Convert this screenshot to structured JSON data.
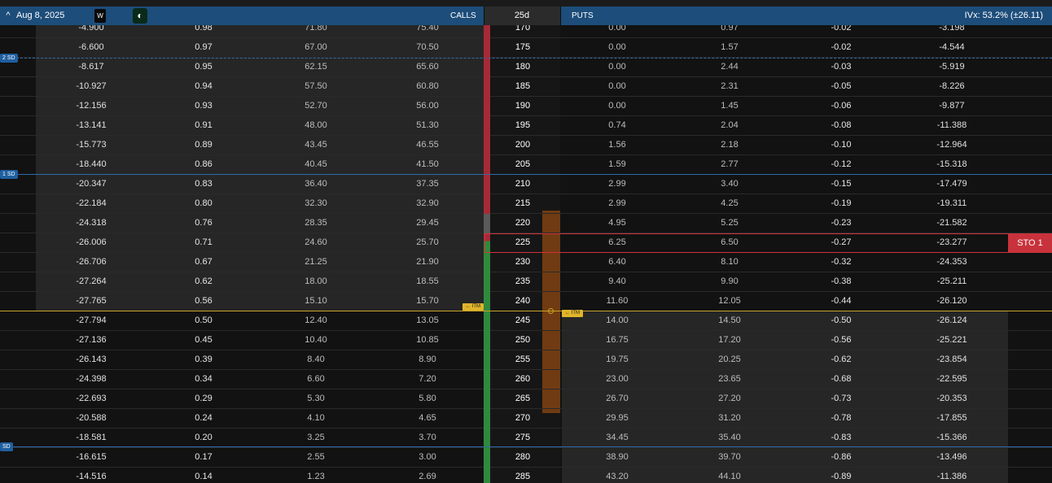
{
  "header": {
    "chevron": "^",
    "expiration": "Aug 8, 2025",
    "weekly_badge": "W",
    "theme_icon": "◐",
    "calls_label": "CALLS",
    "dte_label": "25d",
    "puts_label": "PUTS",
    "ivx": "IVx: 53.2% (±26.11)"
  },
  "sd_labels": {
    "two_sd": "2 SD",
    "one_sd": "1 SD",
    "bottom_sd": "SD"
  },
  "itm_labels": {
    "calls": "← ITM",
    "puts": "← ITM"
  },
  "selected_order": {
    "label": "STO 1"
  },
  "colors": {
    "header_bg": "#1d4d7a",
    "atm_line": "#c9a227",
    "sd_line": "#2f6aa8",
    "call_itm_bar": "#2f8a3e",
    "call_otm_bar": "#a62a36",
    "sto": "#c8323c"
  },
  "rows": [
    {
      "strike": "170",
      "c_theta": "-4.900",
      "c_delta": "0.98",
      "c_bid": "71.80",
      "c_ask": "75.40",
      "p_bid": "0.00",
      "p_ask": "0.97",
      "p_delta": "-0.02",
      "p_theta": "-3.198"
    },
    {
      "strike": "175",
      "c_theta": "-6.600",
      "c_delta": "0.97",
      "c_bid": "67.00",
      "c_ask": "70.50",
      "p_bid": "0.00",
      "p_ask": "1.57",
      "p_delta": "-0.02",
      "p_theta": "-4.544"
    },
    {
      "strike": "180",
      "c_theta": "-8.617",
      "c_delta": "0.95",
      "c_bid": "62.15",
      "c_ask": "65.60",
      "p_bid": "0.00",
      "p_ask": "2.44",
      "p_delta": "-0.03",
      "p_theta": "-5.919"
    },
    {
      "strike": "185",
      "c_theta": "-10.927",
      "c_delta": "0.94",
      "c_bid": "57.50",
      "c_ask": "60.80",
      "p_bid": "0.00",
      "p_ask": "2.31",
      "p_delta": "-0.05",
      "p_theta": "-8.226"
    },
    {
      "strike": "190",
      "c_theta": "-12.156",
      "c_delta": "0.93",
      "c_bid": "52.70",
      "c_ask": "56.00",
      "p_bid": "0.00",
      "p_ask": "1.45",
      "p_delta": "-0.06",
      "p_theta": "-9.877"
    },
    {
      "strike": "195",
      "c_theta": "-13.141",
      "c_delta": "0.91",
      "c_bid": "48.00",
      "c_ask": "51.30",
      "p_bid": "0.74",
      "p_ask": "2.04",
      "p_delta": "-0.08",
      "p_theta": "-11.388"
    },
    {
      "strike": "200",
      "c_theta": "-15.773",
      "c_delta": "0.89",
      "c_bid": "43.45",
      "c_ask": "46.55",
      "p_bid": "1.56",
      "p_ask": "2.18",
      "p_delta": "-0.10",
      "p_theta": "-12.964"
    },
    {
      "strike": "205",
      "c_theta": "-18.440",
      "c_delta": "0.86",
      "c_bid": "40.45",
      "c_ask": "41.50",
      "p_bid": "1.59",
      "p_ask": "2.77",
      "p_delta": "-0.12",
      "p_theta": "-15.318"
    },
    {
      "strike": "210",
      "c_theta": "-20.347",
      "c_delta": "0.83",
      "c_bid": "36.40",
      "c_ask": "37.35",
      "p_bid": "2.99",
      "p_ask": "3.40",
      "p_delta": "-0.15",
      "p_theta": "-17.479"
    },
    {
      "strike": "215",
      "c_theta": "-22.184",
      "c_delta": "0.80",
      "c_bid": "32.30",
      "c_ask": "32.90",
      "p_bid": "2.99",
      "p_ask": "4.25",
      "p_delta": "-0.19",
      "p_theta": "-19.311"
    },
    {
      "strike": "220",
      "c_theta": "-24.318",
      "c_delta": "0.76",
      "c_bid": "28.35",
      "c_ask": "29.45",
      "p_bid": "4.95",
      "p_ask": "5.25",
      "p_delta": "-0.23",
      "p_theta": "-21.582"
    },
    {
      "strike": "225",
      "c_theta": "-26.006",
      "c_delta": "0.71",
      "c_bid": "24.60",
      "c_ask": "25.70",
      "p_bid": "6.25",
      "p_ask": "6.50",
      "p_delta": "-0.27",
      "p_theta": "-23.277"
    },
    {
      "strike": "230",
      "c_theta": "-26.706",
      "c_delta": "0.67",
      "c_bid": "21.25",
      "c_ask": "21.90",
      "p_bid": "6.40",
      "p_ask": "8.10",
      "p_delta": "-0.32",
      "p_theta": "-24.353"
    },
    {
      "strike": "235",
      "c_theta": "-27.264",
      "c_delta": "0.62",
      "c_bid": "18.00",
      "c_ask": "18.55",
      "p_bid": "9.40",
      "p_ask": "9.90",
      "p_delta": "-0.38",
      "p_theta": "-25.211"
    },
    {
      "strike": "240",
      "c_theta": "-27.765",
      "c_delta": "0.56",
      "c_bid": "15.10",
      "c_ask": "15.70",
      "p_bid": "11.60",
      "p_ask": "12.05",
      "p_delta": "-0.44",
      "p_theta": "-26.120"
    },
    {
      "strike": "245",
      "c_theta": "-27.794",
      "c_delta": "0.50",
      "c_bid": "12.40",
      "c_ask": "13.05",
      "p_bid": "14.00",
      "p_ask": "14.50",
      "p_delta": "-0.50",
      "p_theta": "-26.124"
    },
    {
      "strike": "250",
      "c_theta": "-27.136",
      "c_delta": "0.45",
      "c_bid": "10.40",
      "c_ask": "10.85",
      "p_bid": "16.75",
      "p_ask": "17.20",
      "p_delta": "-0.56",
      "p_theta": "-25.221"
    },
    {
      "strike": "255",
      "c_theta": "-26.143",
      "c_delta": "0.39",
      "c_bid": "8.40",
      "c_ask": "8.90",
      "p_bid": "19.75",
      "p_ask": "20.25",
      "p_delta": "-0.62",
      "p_theta": "-23.854"
    },
    {
      "strike": "260",
      "c_theta": "-24.398",
      "c_delta": "0.34",
      "c_bid": "6.60",
      "c_ask": "7.20",
      "p_bid": "23.00",
      "p_ask": "23.65",
      "p_delta": "-0.68",
      "p_theta": "-22.595"
    },
    {
      "strike": "265",
      "c_theta": "-22.693",
      "c_delta": "0.29",
      "c_bid": "5.30",
      "c_ask": "5.80",
      "p_bid": "26.70",
      "p_ask": "27.20",
      "p_delta": "-0.73",
      "p_theta": "-20.353"
    },
    {
      "strike": "270",
      "c_theta": "-20.588",
      "c_delta": "0.24",
      "c_bid": "4.10",
      "c_ask": "4.65",
      "p_bid": "29.95",
      "p_ask": "31.20",
      "p_delta": "-0.78",
      "p_theta": "-17.855"
    },
    {
      "strike": "275",
      "c_theta": "-18.581",
      "c_delta": "0.20",
      "c_bid": "3.25",
      "c_ask": "3.70",
      "p_bid": "34.45",
      "p_ask": "35.40",
      "p_delta": "-0.83",
      "p_theta": "-15.366"
    },
    {
      "strike": "280",
      "c_theta": "-16.615",
      "c_delta": "0.17",
      "c_bid": "2.55",
      "c_ask": "3.00",
      "p_bid": "38.90",
      "p_ask": "39.70",
      "p_delta": "-0.86",
      "p_theta": "-13.496"
    },
    {
      "strike": "285",
      "c_theta": "-14.516",
      "c_delta": "0.14",
      "c_bid": "1.23",
      "c_ask": "2.69",
      "p_bid": "43.20",
      "p_ask": "44.10",
      "p_delta": "-0.89",
      "p_theta": "-11.386"
    }
  ]
}
